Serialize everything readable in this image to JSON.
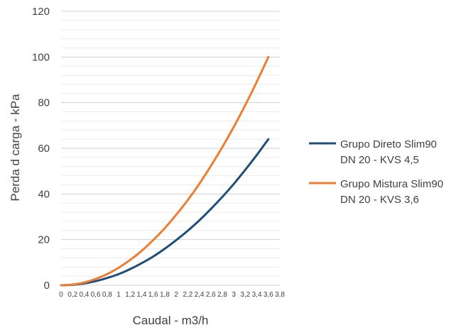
{
  "chart_data": {
    "type": "line",
    "title": "",
    "xlabel": "Caudal - m3/h",
    "ylabel": "Perda d carga - kPa",
    "ylim": [
      0,
      120
    ],
    "yticks": [
      0,
      20,
      40,
      60,
      80,
      100,
      120
    ],
    "xlim": [
      0,
      3.8
    ],
    "xtick_labels": [
      "0",
      "0,2",
      "0,4",
      "0,6",
      "0,8",
      "1",
      "1,2",
      "1,4",
      "1,6",
      "1,8",
      "2",
      "2,2",
      "2,4",
      "2,6",
      "2,8",
      "3",
      "3,2",
      "3,4",
      "3,6",
      "3,8"
    ],
    "grid": "horizontal",
    "legend_position": "right",
    "series": [
      {
        "name_line1": "Grupo Direto Slim90",
        "name_line2": "DN 20 - KVS 4,5",
        "color": "#1f4e79",
        "x": [
          0,
          0.2,
          0.4,
          0.6,
          0.8,
          1.0,
          1.2,
          1.4,
          1.6,
          1.8,
          2.0,
          2.2,
          2.4,
          2.6,
          2.8,
          3.0,
          3.2,
          3.4,
          3.6
        ],
        "y": [
          0,
          0.2,
          0.8,
          1.8,
          3.2,
          4.9,
          7.1,
          9.7,
          12.6,
          16.0,
          19.8,
          23.9,
          28.4,
          33.4,
          38.7,
          44.4,
          50.6,
          57.1,
          64.0
        ]
      },
      {
        "name_line1": "Grupo Mistura Slim90",
        "name_line2": "DN 20 - KVS 3,6",
        "color": "#ed7d31",
        "x": [
          0,
          0.2,
          0.4,
          0.6,
          0.8,
          1.0,
          1.2,
          1.4,
          1.6,
          1.8,
          2.0,
          2.2,
          2.4,
          2.6,
          2.8,
          3.0,
          3.2,
          3.4,
          3.6
        ],
        "y": [
          0,
          0.3,
          1.2,
          2.8,
          4.9,
          7.7,
          11.1,
          15.1,
          19.8,
          25.0,
          30.9,
          37.3,
          44.4,
          52.2,
          60.5,
          69.4,
          79.0,
          89.2,
          100.0
        ]
      }
    ]
  }
}
